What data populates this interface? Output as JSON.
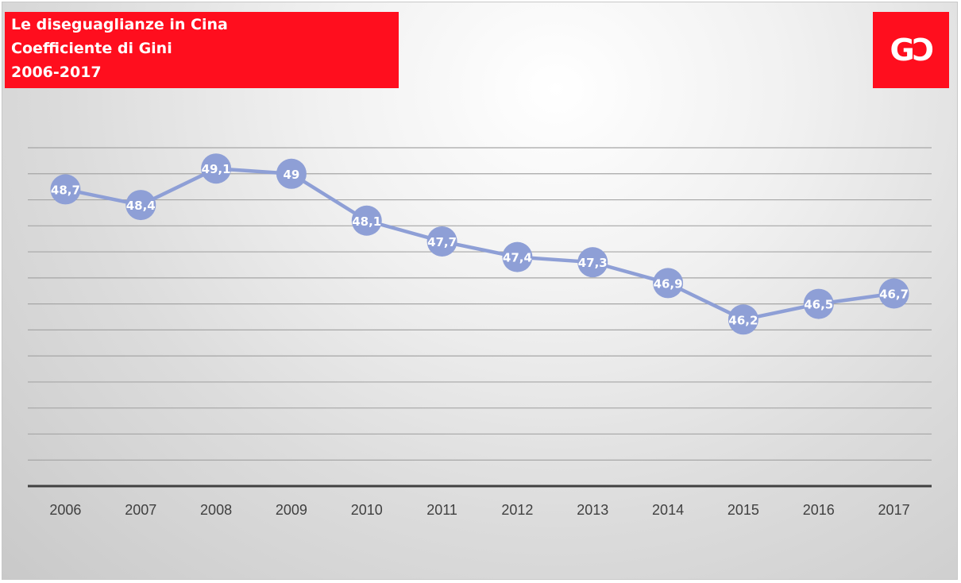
{
  "header": {
    "title_lines": [
      "Le diseguaglianze in Cina",
      "Coefficiente di Gini",
      "2006-2017"
    ],
    "logo_text": "GƆ"
  },
  "colors": {
    "brand_red": "#ff0e1e",
    "series": "#8e9fd6",
    "grid": "#a6a6a6",
    "axis": "#404040"
  },
  "chart_data": {
    "type": "line",
    "title": "Le diseguaglianze in Cina — Coefficiente di Gini — 2006-2017",
    "xlabel": "",
    "ylabel": "",
    "categories": [
      "2006",
      "2007",
      "2008",
      "2009",
      "2010",
      "2011",
      "2012",
      "2013",
      "2014",
      "2015",
      "2016",
      "2017"
    ],
    "series": [
      {
        "values": [
          48.7,
          48.4,
          49.1,
          49.0,
          48.1,
          47.7,
          47.4,
          47.3,
          46.9,
          46.2,
          46.5,
          46.7
        ],
        "labels": [
          "48,7",
          "48,4",
          "49,1",
          "49",
          "48,1",
          "47,7",
          "47,4",
          "47,3",
          "46,9",
          "46,2",
          "46,5",
          "46,7"
        ]
      }
    ],
    "ylim": [
      43.0,
      49.5
    ],
    "gridlines": [
      43.5,
      44.0,
      44.5,
      45.0,
      45.5,
      46.0,
      46.5,
      47.0,
      47.5,
      48.0,
      48.5,
      49.0,
      49.5
    ],
    "y_ticks_visible": false,
    "grid": true,
    "legend": "none",
    "data_labels": true,
    "markers": "large-circle"
  }
}
